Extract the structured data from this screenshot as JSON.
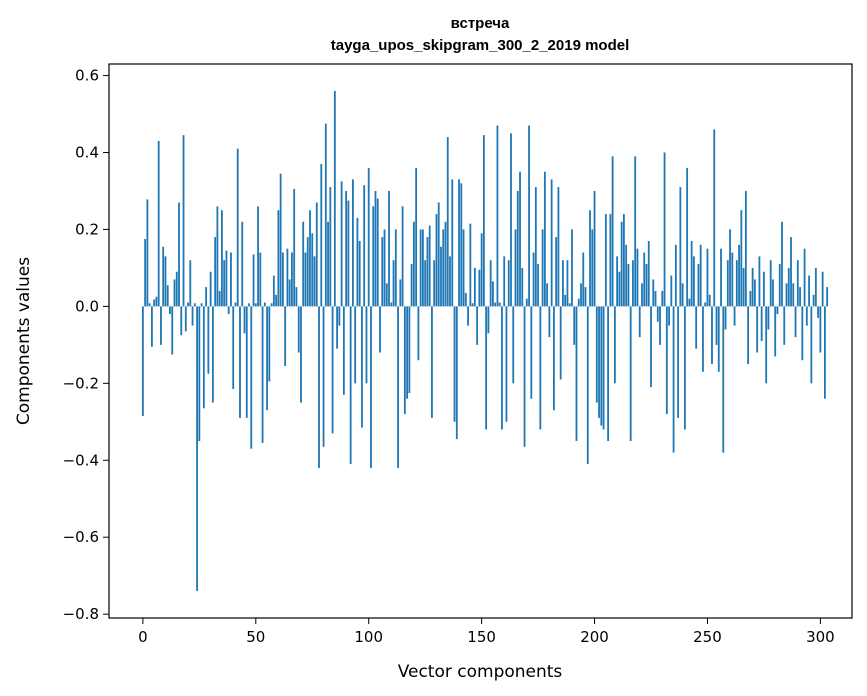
{
  "chart_data": {
    "type": "bar",
    "title": "встреча",
    "subtitle": "tayga_upos_skipgram_300_2_2019 model",
    "xlabel": "Vector components",
    "ylabel": "Components values",
    "xlim": [
      -15,
      314
    ],
    "ylim": [
      -0.81,
      0.63
    ],
    "x_ticks": [
      0,
      50,
      100,
      150,
      200,
      250,
      300
    ],
    "x_tick_labels": [
      "0",
      "50",
      "100",
      "150",
      "200",
      "250",
      "300"
    ],
    "y_ticks": [
      0.6,
      0.4,
      0.2,
      0.0,
      -0.2,
      -0.4,
      -0.6,
      -0.8
    ],
    "y_tick_labels": [
      "0.6",
      "0.4",
      "0.2",
      "0.0",
      "−0.2",
      "−0.4",
      "−0.6",
      "−0.8"
    ],
    "grid": false,
    "bar_color": "#1f77b4",
    "values": [
      -0.285,
      0.175,
      0.278,
      0.008,
      -0.105,
      0.018,
      0.025,
      0.43,
      -0.1,
      0.155,
      0.13,
      0.055,
      -0.02,
      -0.125,
      0.07,
      0.09,
      0.27,
      -0.075,
      0.445,
      -0.065,
      0.01,
      0.12,
      -0.05,
      0.008,
      -0.74,
      -0.35,
      0.008,
      -0.265,
      0.05,
      -0.175,
      0.09,
      -0.25,
      0.18,
      0.26,
      0.04,
      0.25,
      0.12,
      0.145,
      -0.02,
      0.14,
      -0.215,
      0.01,
      0.41,
      -0.29,
      0.22,
      -0.07,
      -0.29,
      0.008,
      -0.37,
      0.135,
      0.008,
      0.26,
      0.14,
      -0.355,
      0.01,
      -0.27,
      -0.195,
      0.008,
      0.08,
      0.03,
      0.25,
      0.345,
      0.14,
      -0.155,
      0.15,
      0.07,
      0.14,
      0.305,
      0.05,
      -0.12,
      -0.25,
      0.22,
      0.14,
      0.18,
      0.25,
      0.19,
      0.13,
      0.27,
      -0.42,
      0.37,
      -0.365,
      0.475,
      0.22,
      0.31,
      -0.33,
      0.56,
      -0.11,
      -0.05,
      0.325,
      -0.23,
      0.3,
      0.275,
      -0.41,
      0.33,
      -0.2,
      0.23,
      0.17,
      -0.315,
      0.315,
      -0.2,
      0.36,
      -0.42,
      0.26,
      0.3,
      0.28,
      -0.12,
      0.18,
      0.2,
      0.06,
      0.3,
      0.01,
      0.12,
      0.2,
      -0.42,
      0.07,
      0.26,
      -0.28,
      -0.24,
      -0.225,
      0.11,
      0.22,
      0.36,
      -0.14,
      0.2,
      0.2,
      0.12,
      0.18,
      0.21,
      -0.29,
      0.12,
      0.24,
      0.27,
      0.155,
      0.2,
      0.22,
      0.44,
      0.13,
      0.33,
      -0.3,
      -0.345,
      0.33,
      0.32,
      0.2,
      0.035,
      -0.05,
      0.215,
      0.008,
      0.1,
      -0.1,
      0.095,
      0.19,
      0.445,
      -0.32,
      -0.07,
      0.12,
      0.065,
      0.01,
      0.47,
      0.01,
      -0.32,
      0.13,
      -0.3,
      0.12,
      0.45,
      -0.2,
      0.2,
      0.3,
      0.35,
      0.1,
      -0.365,
      0.02,
      0.47,
      -0.24,
      0.14,
      0.31,
      0.11,
      -0.32,
      0.2,
      0.35,
      0.06,
      -0.08,
      0.33,
      -0.27,
      0.18,
      0.31,
      -0.19,
      0.12,
      0.03,
      0.12,
      0.008,
      0.2,
      -0.1,
      -0.35,
      0.02,
      0.06,
      0.14,
      0.05,
      -0.41,
      0.25,
      0.2,
      0.3,
      -0.25,
      -0.29,
      -0.31,
      -0.32,
      0.24,
      -0.35,
      0.24,
      0.39,
      -0.2,
      0.13,
      0.09,
      0.22,
      0.24,
      0.16,
      0.11,
      -0.35,
      0.12,
      0.39,
      0.15,
      -0.08,
      0.06,
      0.14,
      0.11,
      0.17,
      -0.21,
      0.07,
      0.04,
      -0.04,
      -0.1,
      0.04,
      0.4,
      -0.28,
      -0.05,
      0.08,
      -0.38,
      0.16,
      -0.29,
      0.31,
      0.06,
      -0.32,
      0.36,
      0.02,
      0.17,
      0.13,
      -0.11,
      0.11,
      0.16,
      -0.17,
      0.01,
      0.15,
      0.03,
      -0.15,
      0.46,
      -0.1,
      -0.17,
      0.15,
      -0.38,
      -0.06,
      0.12,
      0.2,
      0.14,
      -0.05,
      0.12,
      0.16,
      0.25,
      0.1,
      0.3,
      -0.15,
      0.04,
      0.1,
      0.07,
      -0.12,
      0.13,
      -0.09,
      0.09,
      -0.2,
      -0.06,
      0.12,
      0.07,
      -0.13,
      -0.02,
      0.11,
      0.22,
      -0.1,
      0.06,
      0.1,
      0.18,
      0.06,
      -0.08,
      0.12,
      0.05,
      -0.14,
      0.15,
      -0.05,
      0.08,
      -0.2,
      0.03,
      0.1,
      -0.03,
      -0.12,
      0.09,
      -0.24,
      0.05
    ]
  }
}
